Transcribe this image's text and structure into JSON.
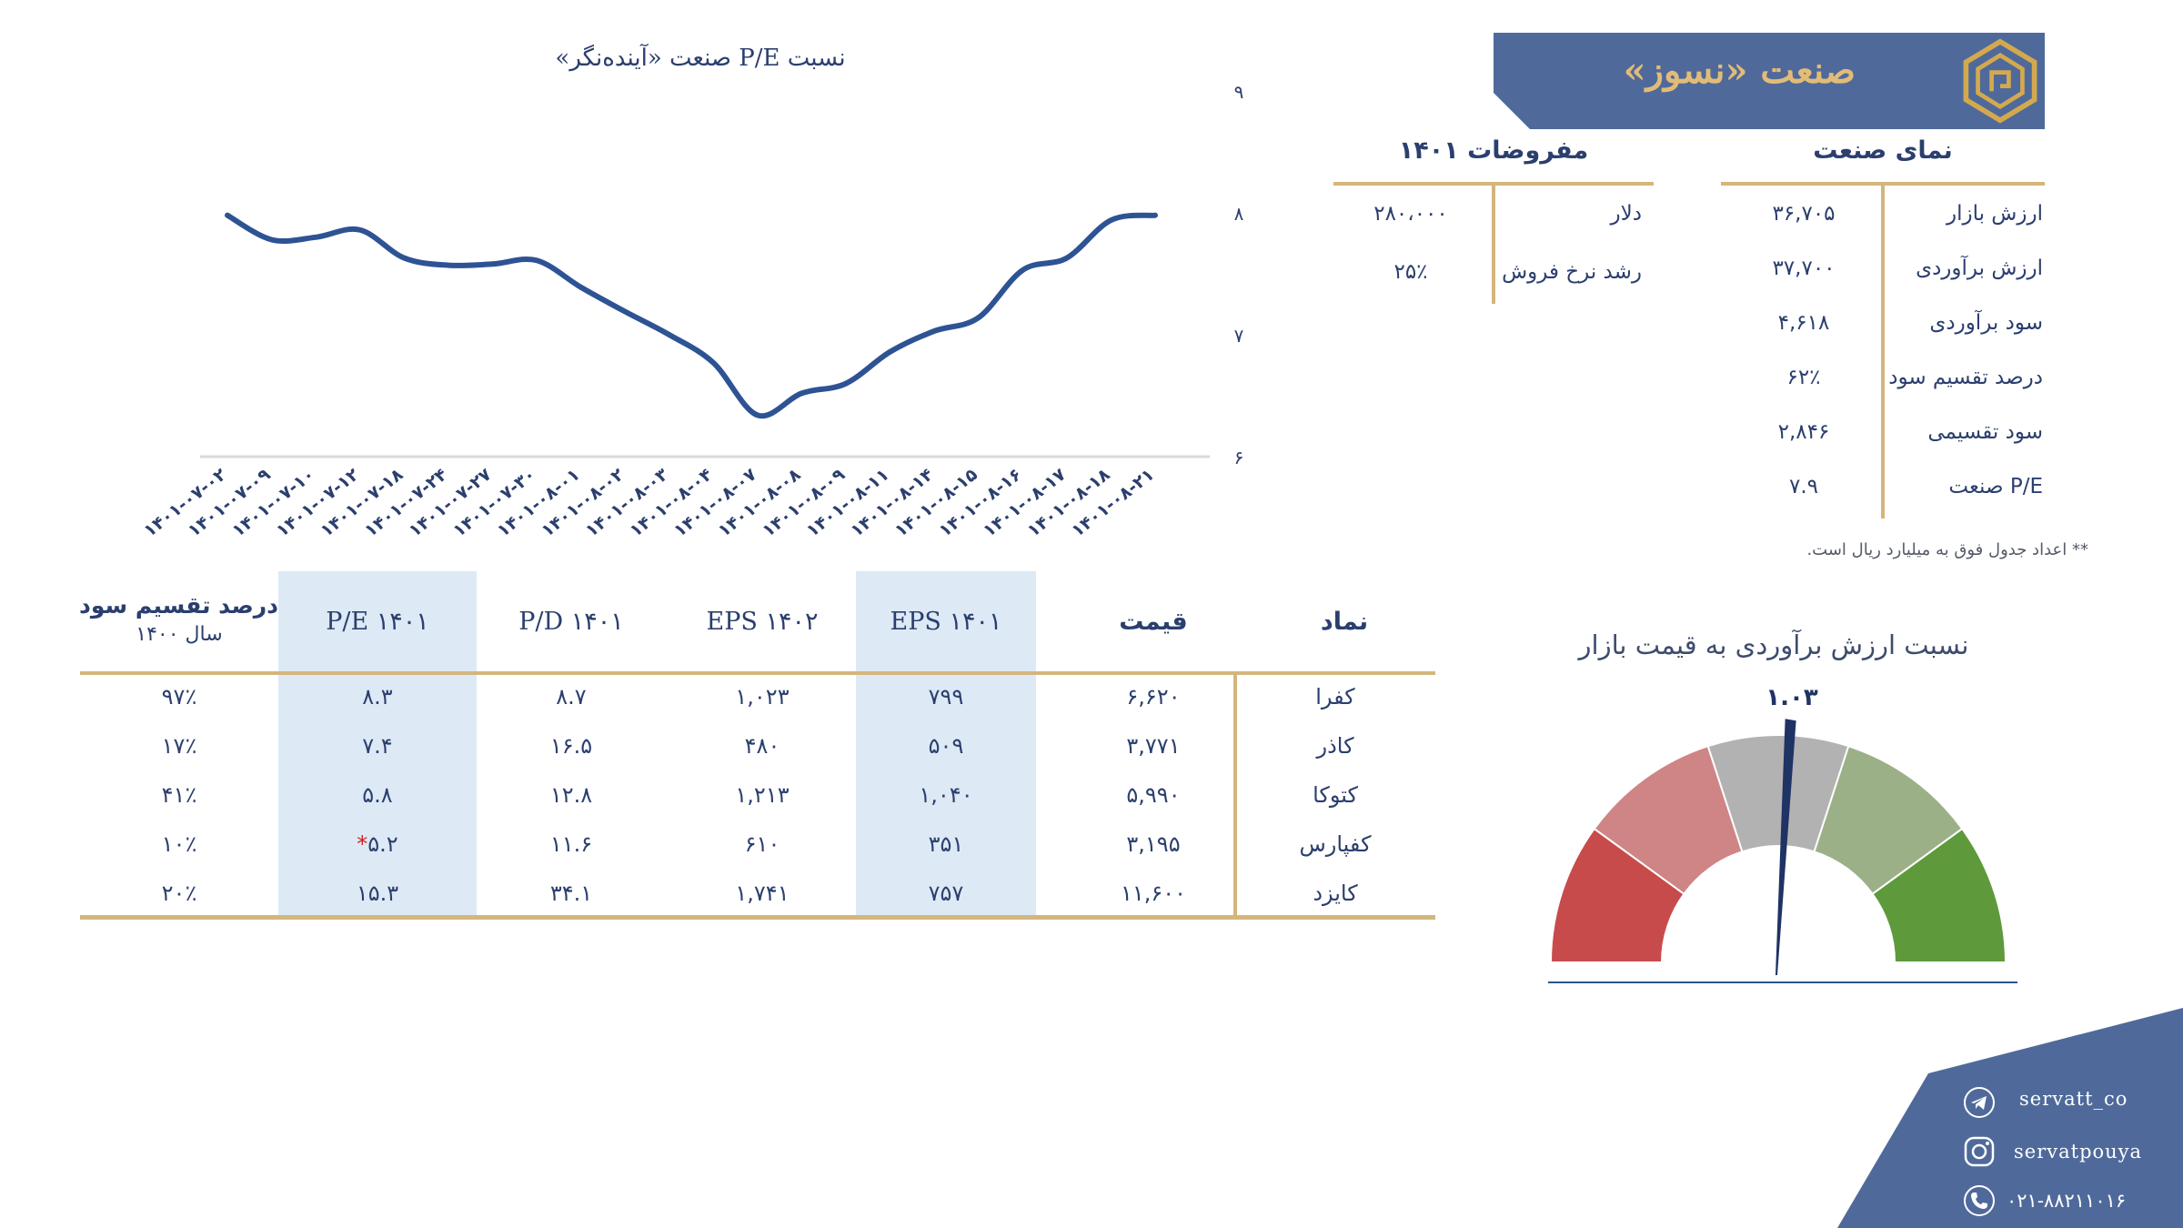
{
  "header": {
    "title": "صنعت «نسوز»"
  },
  "industry_view": {
    "title": "نمای صنعت",
    "rows": [
      {
        "label": "ارزش بازار",
        "value": "۳۶,۷۰۵"
      },
      {
        "label": "ارزش برآوردی",
        "value": "۳۷,۷۰۰"
      },
      {
        "label": "سود برآوردی",
        "value": "۴,۶۱۸"
      },
      {
        "label": "درصد تقسیم سود",
        "value": "۶۲٪"
      },
      {
        "label": "سود تقسیمی",
        "value": "۲,۸۴۶"
      },
      {
        "label": "P/E صنعت",
        "value": "۷.۹"
      }
    ],
    "note": "** اعداد جدول فوق به میلیارد ریال است."
  },
  "assumptions": {
    "title": "مفروضات ۱۴۰۱",
    "rows": [
      {
        "label": "دلار",
        "value": "۲۸۰،۰۰۰"
      },
      {
        "label": "رشد نرخ فروش",
        "value": "۲۵٪"
      }
    ]
  },
  "table": {
    "headers": {
      "symbol": "نماد",
      "price": "قیمت",
      "eps1401": "EPS ۱۴۰۱",
      "eps1402": "EPS ۱۴۰۲",
      "pd1401": "P/D ۱۴۰۱",
      "pe1401": "P/E  ۱۴۰۱",
      "dpr_line1": "درصد تقسیم سود",
      "dpr_line2": "سال ۱۴۰۰"
    },
    "rows": [
      {
        "symbol": "کفرا",
        "price": "۶,۶۲۰",
        "eps1401": "۷۹۹",
        "eps1402": "۱,۰۲۳",
        "pd1401": "۸.۷",
        "pe1401": "۸.۳",
        "pe_star": "",
        "dpr": "۹۷٪"
      },
      {
        "symbol": "کاذر",
        "price": "۳,۷۷۱",
        "eps1401": "۵۰۹",
        "eps1402": "۴۸۰",
        "pd1401": "۱۶.۵",
        "pe1401": "۷.۴",
        "pe_star": "",
        "dpr": "۱۷٪"
      },
      {
        "symbol": "کتوکا",
        "price": "۵,۹۹۰",
        "eps1401": "۱,۰۴۰",
        "eps1402": "۱,۲۱۳",
        "pd1401": "۱۲.۸",
        "pe1401": "۵.۸",
        "pe_star": "",
        "dpr": "۴۱٪"
      },
      {
        "symbol": "کفپارس",
        "price": "۳,۱۹۵",
        "eps1401": "۳۵۱",
        "eps1402": "۶۱۰",
        "pd1401": "۱۱.۶",
        "pe1401": "۵.۲",
        "pe_star": "*",
        "dpr": "۱۰٪"
      },
      {
        "symbol": "کایزد",
        "price": "۱۱,۶۰۰",
        "eps1401": "۷۵۷",
        "eps1402": "۱,۷۴۱",
        "pd1401": "۳۴.۱",
        "pe1401": "۱۵.۳",
        "pe_star": "",
        "dpr": "۲۰٪"
      }
    ]
  },
  "gauge": {
    "title": "نسبت ارزش برآوردی به قیمت بازار",
    "value_label": "۱.۰۳",
    "value": 1.03,
    "range": [
      0,
      2
    ],
    "bands": [
      "#c84b4b",
      "#cf8585",
      "#b2b2b2",
      "#9cb088",
      "#5e9a3c"
    ]
  },
  "chart_data": {
    "type": "line",
    "title": "نسبت P/E صنعت «آینده‌نگر»",
    "color": "#2e5394",
    "ylim": [
      6,
      9
    ],
    "yticks": [
      "۶",
      "۷",
      "۸",
      "۹"
    ],
    "x": [
      "۱۴۰۱-۰۷-۰۲",
      "۱۴۰۱-۰۷-۰۹",
      "۱۴۰۱-۰۷-۱۰",
      "۱۴۰۱-۰۷-۱۲",
      "۱۴۰۱-۰۷-۱۸",
      "۱۴۰۱-۰۷-۲۴",
      "۱۴۰۱-۰۷-۲۷",
      "۱۴۰۱-۰۷-۳۰",
      "۱۴۰۱-۰۸-۰۱",
      "۱۴۰۱-۰۸-۰۲",
      "۱۴۰۱-۰۸-۰۳",
      "۱۴۰۱-۰۸-۰۴",
      "۱۴۰۱-۰۸-۰۷",
      "۱۴۰۱-۰۸-۰۸",
      "۱۴۰۱-۰۸-۰۹",
      "۱۴۰۱-۰۸-۱۱",
      "۱۴۰۱-۰۸-۱۴",
      "۱۴۰۱-۰۸-۱۵",
      "۱۴۰۱-۰۸-۱۶",
      "۱۴۰۱-۰۸-۱۷",
      "۱۴۰۱-۰۸-۱۸",
      "۱۴۰۱-۰۸-۲۱"
    ],
    "values": [
      7.98,
      7.78,
      7.8,
      7.86,
      7.63,
      7.57,
      7.58,
      7.61,
      7.39,
      7.19,
      7.0,
      6.77,
      6.34,
      6.52,
      6.6,
      6.86,
      7.03,
      7.14,
      7.53,
      7.63,
      7.94,
      7.98
    ]
  },
  "social": {
    "telegram": "servatt_co",
    "instagram": "servatpouya",
    "phone": "۰۲۱-۸۸۲۱۱۰۱۶"
  }
}
